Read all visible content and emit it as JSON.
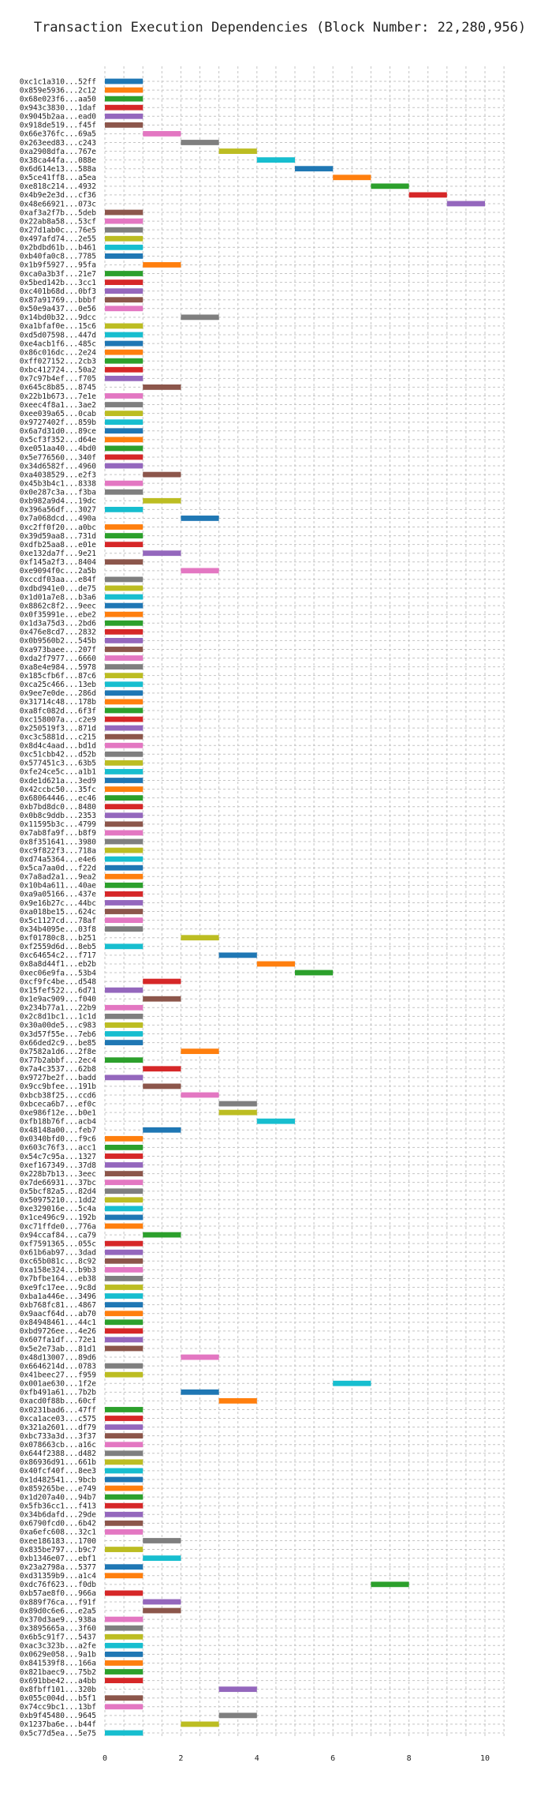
{
  "chart_data": {
    "type": "bar",
    "title": "Transaction Execution Dependencies (Block Number: 22,280,956)",
    "xlabel": "",
    "ylabel": "",
    "orientation": "horizontal-gantt",
    "xlim": [
      0,
      10.5
    ],
    "x_ticks": [
      0,
      2,
      4,
      6,
      8,
      10
    ],
    "grid": true,
    "legend": "none",
    "palette": [
      "#1f77b4",
      "#ff7f0e",
      "#2ca02c",
      "#d62728",
      "#9467bd",
      "#8c564b",
      "#e377c2",
      "#7f7f7f",
      "#bcbd22",
      "#17becf"
    ],
    "bar_width": 1,
    "categories": [
      "0xc1c1a310...52ff",
      "0x859e5936...2c12",
      "0x68e023f6...aa50",
      "0x943c3830...1daf",
      "0x9045b2aa...ead0",
      "0x918de519...f45f",
      "0x66e376fc...69a5",
      "0x263eed83...c243",
      "0xa2908dfa...767e",
      "0x38ca44fa...088e",
      "0x6d614e13...588a",
      "0x5ce41ff8...a5ea",
      "0xe818c214...4932",
      "0x4b9e2e3d...cf36",
      "0x48e66921...073c",
      "0xaf3a2f7b...5deb",
      "0x22ab8a58...53cf",
      "0x27d1ab0c...76e5",
      "0x497afd74...2e55",
      "0x2bdbd61b...b461",
      "0xb40fa0c8...7785",
      "0x1b9f5927...95fa",
      "0xca0a3b3f...21e7",
      "0x5bed142b...3cc1",
      "0xc401b68d...0bf3",
      "0x87a91769...bbbf",
      "0x50e9a437...0e56",
      "0x14bd0b32...9dcc",
      "0xa1bfaf0e...15c6",
      "0xd5d07598...447d",
      "0xe4acb1f6...485c",
      "0x86c016dc...2e24",
      "0xff027152...2cb3",
      "0xbc412724...50a2",
      "0x7c97b4ef...f705",
      "0x645c8b85...8745",
      "0x22b1b673...7e1e",
      "0xeec4f8a1...3ae2",
      "0xee039a65...0cab",
      "0x9727402f...859b",
      "0x6a7d31d0...89ce",
      "0x5cf3f352...d64e",
      "0xe051aa40...4bd0",
      "0x5e776560...340f",
      "0x34d6582f...4960",
      "0xa4038529...e2f3",
      "0x45b3b4c1...8338",
      "0x0e287c3a...f3ba",
      "0xb982a9d4...19dc",
      "0x396a56df...3027",
      "0x7a068dcd...490a",
      "0xc2ff0f20...a0bc",
      "0x39d59aa8...731d",
      "0xdfb25aa8...e01e",
      "0xe132da7f...9e21",
      "0xf145a2f3...8404",
      "0xe9094f0c...2a5b",
      "0xccdf03aa...e84f",
      "0xdbd941e0...de75",
      "0x1d01a7e8...b3a6",
      "0x8862c8f2...9eec",
      "0x0f35991e...ebe2",
      "0x1d3a75d3...2bd6",
      "0x476e8cd7...2832",
      "0x0b9560b2...545b",
      "0xa973baee...207f",
      "0xda2f7977...6660",
      "0xa8e4e984...5978",
      "0x185cfb6f...87c6",
      "0xca25c466...13eb",
      "0x9ee7e0de...286d",
      "0x31714c48...178b",
      "0xa8fc082d...6f3f",
      "0xc158007a...c2e9",
      "0x250519f3...871d",
      "0xc3c5881d...c215",
      "0x8d4c4aad...bd1d",
      "0xc51cbb42...d52b",
      "0x577451c3...63b5",
      "0xfe24ce5c...a1b1",
      "0xde1d621a...3ed9",
      "0x42ccbc50...35fc",
      "0x68064446...ec46",
      "0xb7bd8dc0...8480",
      "0x0b8c9ddb...2353",
      "0x11595b3c...4799",
      "0x7ab8fa9f...b8f9",
      "0x8f351641...3980",
      "0xc9f822f3...718a",
      "0xd74a5364...e4e6",
      "0x5ca7aa0d...f22d",
      "0x7a8ad2a1...9ea2",
      "0x10b4a611...40ae",
      "0xa9a05166...437e",
      "0x9e16b27c...44bc",
      "0xa018be15...624c",
      "0x5c1127cd...78af",
      "0x34b4095e...03f8",
      "0xf01780c8...b251",
      "0xf2559d6d...8eb5",
      "0xc64654c2...f717",
      "0x8a8d44f1...eb2b",
      "0xec06e9fa...53b4",
      "0xcf9fc4be...d548",
      "0x15fef522...6d71",
      "0x1e9ac909...f040",
      "0x234b77a1...22b9",
      "0x2c8d1bc1...1c1d",
      "0x30a00de5...c983",
      "0x3d57f55e...7eb6",
      "0x66ded2c9...be85",
      "0x7582a1d6...2f8e",
      "0x77b2abbf...2ec4",
      "0x7a4c3537...62b8",
      "0x9727be2f...badd",
      "0x9cc9bfee...191b",
      "0xbcb38f25...ccd6",
      "0xbceca6b7...ef0c",
      "0xe986f12e...b0e1",
      "0xfb18b76f...acb4",
      "0x48148a00...feb7",
      "0x0340bfd0...f9c6",
      "0x603c76f3...acc1",
      "0x54c7c95a...1327",
      "0xef167349...37d8",
      "0x228b7b13...3eec",
      "0x7de66931...37bc",
      "0x5bcf82a5...82d4",
      "0x50975210...1dd2",
      "0xe329016e...5c4a",
      "0x1ce496c9...192b",
      "0xc71ffde0...776a",
      "0x94ccaf84...ca79",
      "0xf7591365...055c",
      "0x61b6ab97...3dad",
      "0xc65b081c...8c92",
      "0xa158e324...b9b3",
      "0x7bfbe164...eb38",
      "0xe9fc17ee...9c8d",
      "0xba1a446e...3496",
      "0xb768fc81...4867",
      "0x9aacf64d...ab70",
      "0x84948461...44c1",
      "0xbd9726ee...4e26",
      "0x607fa1df...72e1",
      "0x5e2e73ab...81d1",
      "0x48d13007...89d6",
      "0x6646214d...0783",
      "0x41beec27...f959",
      "0x001ae630...1f2e",
      "0xfb491a61...7b2b",
      "0xacd0f88b...60cf",
      "0x0231bad6...47ff",
      "0xca1ace03...c575",
      "0x321a2601...df79",
      "0xbc733a3d...3f37",
      "0x078663cb...a16c",
      "0x644f2388...d482",
      "0x86936d91...661b",
      "0x40fcf40f...8ee3",
      "0x1d482541...9bcb",
      "0x859265be...e749",
      "0x1d207a40...94b7",
      "0x5fb36cc1...f413",
      "0x34b6dafd...29de",
      "0x6790fcd0...6b42",
      "0xa6efc608...32c1",
      "0xee186183...1700",
      "0x835be797...b9c7",
      "0xb1346e07...ebf1",
      "0x23a2798a...5377",
      "0xd31359b9...a1c4",
      "0xdc76f623...f0db",
      "0xb57ae8f0...966a",
      "0x889f76ca...f91f",
      "0x89d0c6e6...e2a5",
      "0x370d3ae9...938a",
      "0x3895665a...3f60",
      "0x6b5c91f7...5437",
      "0xac3c323b...a2fe",
      "0x0629e058...9a1b",
      "0x841539f8...166a",
      "0x821baec9...75b2",
      "0x691bbe42...a4bb",
      "0x8fbff101...320b",
      "0x055c004d...b5f1",
      "0x74cc9bc1...13bf",
      "0xb9f45480...9645",
      "0x1237ba6e...b44f",
      "0x5c77d5ea...5e75"
    ],
    "start": [
      0,
      0,
      0,
      0,
      0,
      0,
      1,
      2,
      3,
      4,
      5,
      6,
      7,
      8,
      9,
      0,
      0,
      0,
      0,
      0,
      0,
      1,
      0,
      0,
      0,
      0,
      0,
      2,
      0,
      0,
      0,
      0,
      0,
      0,
      0,
      1,
      0,
      0,
      0,
      0,
      0,
      0,
      0,
      0,
      0,
      1,
      0,
      0,
      1,
      0,
      2,
      0,
      0,
      0,
      1,
      0,
      2,
      0,
      0,
      0,
      0,
      0,
      0,
      0,
      0,
      0,
      0,
      0,
      0,
      0,
      0,
      0,
      0,
      0,
      0,
      0,
      0,
      0,
      0,
      0,
      0,
      0,
      0,
      0,
      0,
      0,
      0,
      0,
      0,
      0,
      0,
      0,
      0,
      0,
      0,
      0,
      0,
      0,
      2,
      0,
      3,
      4,
      5,
      1,
      0,
      1,
      0,
      0,
      0,
      0,
      0,
      2,
      0,
      1,
      0,
      1,
      2,
      3,
      3,
      4,
      1,
      0,
      0,
      0,
      0,
      0,
      0,
      0,
      0,
      0,
      0,
      0,
      1,
      0,
      0,
      0,
      0,
      0,
      0,
      0,
      0,
      0,
      0,
      0,
      0,
      0,
      2,
      0,
      0,
      6,
      2,
      3,
      0,
      0,
      0,
      0,
      0,
      0,
      0,
      0,
      0,
      0,
      0,
      0,
      0,
      0,
      0,
      1,
      0,
      1,
      0,
      0,
      7,
      0,
      1,
      1,
      0,
      0,
      0,
      0,
      0,
      0,
      0,
      0,
      3,
      0,
      0,
      3,
      2,
      0
    ],
    "color_index": [
      0,
      1,
      2,
      3,
      4,
      5,
      6,
      7,
      8,
      9,
      0,
      1,
      2,
      3,
      4,
      5,
      6,
      7,
      8,
      9,
      0,
      1,
      2,
      3,
      4,
      5,
      6,
      7,
      8,
      9,
      0,
      1,
      2,
      3,
      4,
      5,
      6,
      7,
      8,
      9,
      0,
      1,
      2,
      3,
      4,
      5,
      6,
      7,
      8,
      9,
      0,
      1,
      2,
      3,
      4,
      5,
      6,
      7,
      8,
      9,
      0,
      1,
      2,
      3,
      4,
      5,
      6,
      7,
      8,
      9,
      0,
      1,
      2,
      3,
      4,
      5,
      6,
      7,
      8,
      9,
      0,
      1,
      2,
      3,
      4,
      5,
      6,
      7,
      8,
      9,
      0,
      1,
      2,
      3,
      4,
      5,
      6,
      7,
      8,
      9,
      0,
      1,
      2,
      3,
      4,
      5,
      6,
      7,
      8,
      9,
      0,
      1,
      2,
      3,
      4,
      5,
      6,
      7,
      8,
      9,
      0,
      1,
      2,
      3,
      4,
      5,
      6,
      7,
      8,
      9,
      0,
      1,
      2,
      3,
      4,
      5,
      6,
      7,
      8,
      9,
      0,
      1,
      2,
      3,
      4,
      5,
      6,
      7,
      8,
      9,
      0,
      1,
      2,
      3,
      4,
      5,
      6,
      7,
      8,
      9,
      0,
      1,
      2,
      3,
      4,
      5,
      6,
      7,
      8,
      9,
      0,
      1,
      2,
      3,
      4,
      5,
      6,
      7,
      8,
      9,
      0,
      1,
      2,
      3,
      4,
      5,
      6,
      7,
      8,
      9,
      0,
      1,
      2,
      3,
      4,
      5,
      6,
      7,
      8,
      9
    ]
  }
}
